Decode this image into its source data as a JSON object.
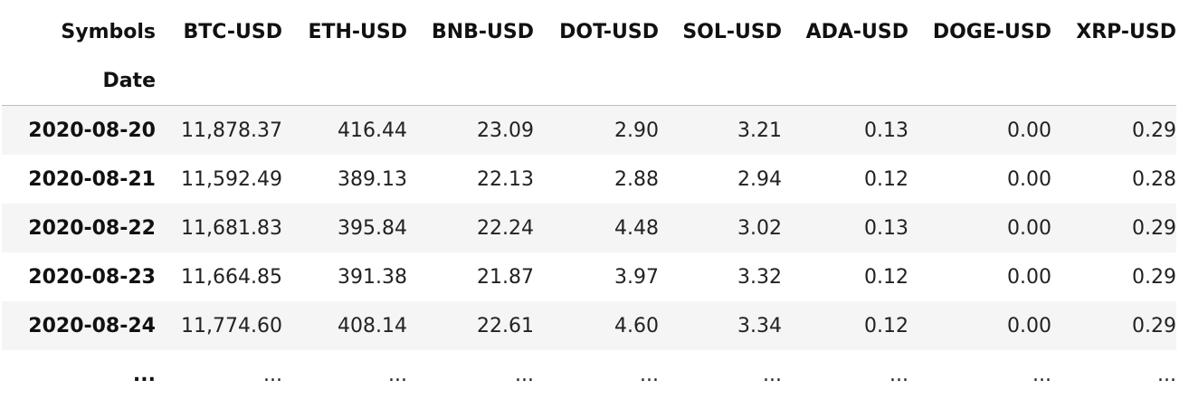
{
  "table": {
    "columns_label": "Symbols",
    "index_label": "Date",
    "columns": [
      "BTC-USD",
      "ETH-USD",
      "BNB-USD",
      "DOT-USD",
      "SOL-USD",
      "ADA-USD",
      "DOGE-USD",
      "XRP-USD"
    ],
    "rows": [
      {
        "date": "2020-08-20",
        "values": [
          "11,878.37",
          "416.44",
          "23.09",
          "2.90",
          "3.21",
          "0.13",
          "0.00",
          "0.29"
        ]
      },
      {
        "date": "2020-08-21",
        "values": [
          "11,592.49",
          "389.13",
          "22.13",
          "2.88",
          "2.94",
          "0.12",
          "0.00",
          "0.28"
        ]
      },
      {
        "date": "2020-08-22",
        "values": [
          "11,681.83",
          "395.84",
          "22.24",
          "4.48",
          "3.02",
          "0.13",
          "0.00",
          "0.29"
        ]
      },
      {
        "date": "2020-08-23",
        "values": [
          "11,664.85",
          "391.38",
          "21.87",
          "3.97",
          "3.32",
          "0.12",
          "0.00",
          "0.29"
        ]
      },
      {
        "date": "2020-08-24",
        "values": [
          "11,774.60",
          "408.14",
          "22.61",
          "4.60",
          "3.34",
          "0.12",
          "0.00",
          "0.29"
        ]
      },
      {
        "date": "...",
        "values": [
          "...",
          "...",
          "...",
          "...",
          "...",
          "...",
          "...",
          "..."
        ]
      }
    ]
  }
}
